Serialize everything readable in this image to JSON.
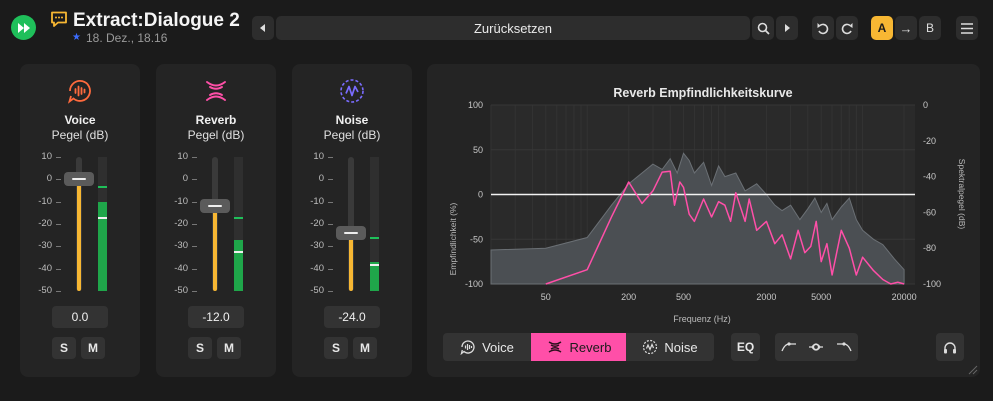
{
  "header": {
    "title": "Extract:Dialogue 2",
    "date": "18. Dez., 18.16",
    "preset_label": "Zurücksetzen",
    "ab_a": "A",
    "ab_arrow": "→",
    "ab_b": "B"
  },
  "strips": [
    {
      "name": "Voice",
      "sub": "Pegel (dB)",
      "value": "0.0",
      "fader_db": 0,
      "meter_db": -10,
      "peak_db": -3,
      "rms_db": -17,
      "icon": "voice-icon",
      "color": "#ff6a3d"
    },
    {
      "name": "Reverb",
      "sub": "Pegel (dB)",
      "value": "-12.0",
      "fader_db": -12,
      "meter_db": -27,
      "peak_db": -17,
      "rms_db": -32,
      "icon": "reverb-icon",
      "color": "#ff4fa8"
    },
    {
      "name": "Noise",
      "sub": "Pegel (dB)",
      "value": "-24.0",
      "fader_db": -24,
      "meter_db": -37,
      "peak_db": -26,
      "rms_db": -38,
      "icon": "noise-icon",
      "color": "#7a6cff"
    }
  ],
  "scale_ticks": [
    "10",
    "0",
    "-10",
    "-20",
    "-30",
    "-40",
    "-50"
  ],
  "solo_label": "S",
  "mute_label": "M",
  "chart_data": {
    "type": "area",
    "title": "Reverb Empfindlichkeitskurve",
    "xlabel": "Frequenz (Hz)",
    "ylabel": "Empfindlichkeit (%)",
    "ylabel_right": "Spektralpegel (dB)",
    "x_scale": "log",
    "xlim": [
      20,
      24000
    ],
    "ylim": [
      -100,
      100
    ],
    "ylim_right": [
      -100,
      0
    ],
    "x_ticks": [
      "50",
      "200",
      "500",
      "2000",
      "5000",
      "20000"
    ],
    "y_ticks_left": [
      "100",
      "50",
      "0",
      "-50",
      "-100"
    ],
    "y_ticks_right": [
      "0",
      "-20",
      "-40",
      "-60",
      "-80",
      "-100"
    ],
    "threshold_percent": 0,
    "series": [
      {
        "name": "Spektralpegel",
        "color": "#555a5f",
        "x": [
          20,
          50,
          100,
          150,
          200,
          250,
          300,
          350,
          400,
          450,
          500,
          550,
          600,
          700,
          800,
          900,
          1000,
          1200,
          1400,
          1700,
          2000,
          2300,
          2600,
          3000,
          3500,
          4000,
          4500,
          5000,
          5500,
          6000,
          7000,
          8000,
          9000,
          10000,
          12000,
          14000,
          17000,
          20000
        ],
        "values": [
          -81,
          -80,
          -74,
          -56,
          -44,
          -38,
          -33,
          -36,
          -30,
          -38,
          -27,
          -31,
          -38,
          -32,
          -45,
          -34,
          -40,
          -38,
          -48,
          -44,
          -50,
          -56,
          -59,
          -56,
          -64,
          -58,
          -52,
          -60,
          -55,
          -64,
          -57,
          -52,
          -64,
          -70,
          -75,
          -78,
          -86,
          -92
        ]
      },
      {
        "name": "Reverb Empfindlichkeit",
        "color": "#ff4fa8",
        "x": [
          50,
          100,
          150,
          200,
          250,
          300,
          350,
          400,
          430,
          470,
          500,
          550,
          600,
          700,
          800,
          900,
          1000,
          1100,
          1200,
          1400,
          1500,
          1700,
          2000,
          2300,
          2600,
          3000,
          3400,
          3800,
          4200,
          4600,
          5000,
          5500,
          6000,
          7000,
          8000,
          9000,
          10000,
          12000,
          14000,
          16000,
          18000,
          20000
        ],
        "values": [
          -100,
          -84,
          -25,
          14,
          -10,
          4,
          25,
          26,
          -12,
          14,
          8,
          -22,
          -30,
          -5,
          -25,
          -8,
          -12,
          -30,
          2,
          -30,
          -5,
          -40,
          -30,
          -55,
          -45,
          -72,
          -40,
          -65,
          -58,
          -30,
          -75,
          -55,
          -90,
          -40,
          -60,
          -90,
          -70,
          -85,
          -95,
          -100,
          -98,
          -100
        ]
      }
    ]
  },
  "bottom": {
    "seg_voice": "Voice",
    "seg_reverb": "Reverb",
    "seg_noise": "Noise",
    "eq_label": "EQ"
  }
}
